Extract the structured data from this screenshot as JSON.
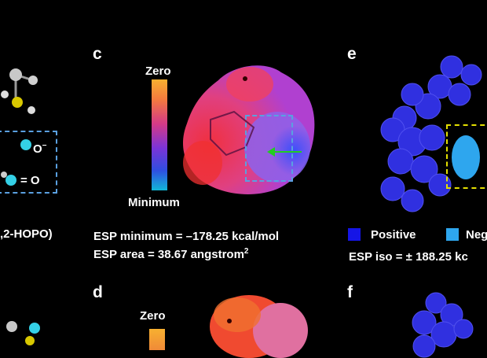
{
  "panels": {
    "left": {
      "ligand_label": ",2-HOPO)",
      "o_minus": "O",
      "o_minus_sup": "−",
      "eq_o": "= O"
    },
    "c": {
      "letter": "c",
      "scale_top": "Zero",
      "scale_bottom": "Minimum",
      "esp_min_line": "ESP minimum = –178.25 kcal/mol",
      "esp_area_line": "ESP area = 38.67 angstrom",
      "esp_area_sup": "2"
    },
    "d": {
      "letter": "d",
      "scale_top": "Zero"
    },
    "e": {
      "letter": "e",
      "legend_positive": "Positive",
      "legend_negative": "Neg",
      "esp_iso_line": "ESP iso = ± 188.25 kc"
    },
    "f": {
      "letter": "f"
    }
  },
  "colors": {
    "positive": "#1515e6",
    "negative": "#2ea6ee",
    "highlight_box_c": "#5aa0e0",
    "highlight_box_e": "#e4e000",
    "arrow": "#22cc22"
  }
}
